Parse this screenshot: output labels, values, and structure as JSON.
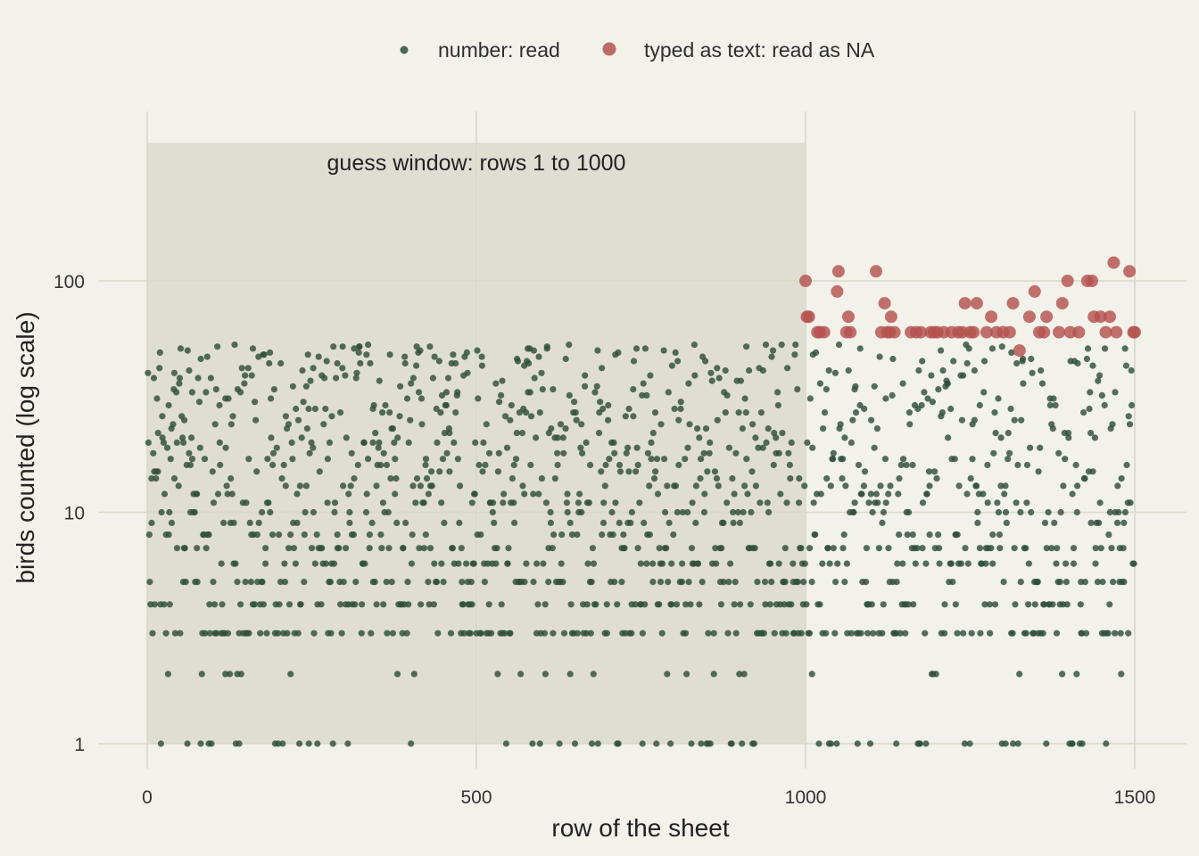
{
  "chart_data": {
    "type": "scatter",
    "xlabel": "row of the sheet",
    "ylabel": "birds counted (log scale)",
    "x_scale": "linear",
    "y_scale": "log10",
    "xlim": [
      -60,
      1560
    ],
    "ylim": [
      0.84,
      500
    ],
    "x_ticks": [
      0,
      500,
      1000,
      1500
    ],
    "x_tick_labels": [
      "0",
      "500",
      "1000",
      "1500"
    ],
    "y_ticks": [
      1,
      10,
      100
    ],
    "y_tick_labels": [
      "1",
      "10",
      "100"
    ],
    "grid": true,
    "legend_position": "top",
    "annotation": {
      "text": "guess window: rows 1 to 1000",
      "x_start": 1,
      "x_end": 1000
    },
    "series": [
      {
        "name": "number: read",
        "color": "#2f4f3a",
        "marker": "small-circle",
        "points_description": "about 1500 rows, counts between 1 and 53 birds",
        "x_range": [
          1,
          1500
        ],
        "y_range": [
          1,
          53
        ],
        "count_values": [
          1,
          2,
          3,
          4,
          5,
          6,
          7,
          8,
          9,
          10,
          11,
          12,
          13,
          14,
          15,
          16,
          17,
          18,
          19,
          20,
          21,
          22,
          23,
          24,
          25,
          26,
          27,
          28,
          29,
          30,
          32,
          34,
          36,
          38,
          40,
          42,
          44,
          46,
          48,
          50,
          52,
          53
        ]
      },
      {
        "name": "typed as text: read as NA",
        "color": "#b5524f",
        "marker": "large-circle",
        "points": [
          [
            1000,
            100
          ],
          [
            1002,
            70
          ],
          [
            1005,
            70
          ],
          [
            1018,
            60
          ],
          [
            1022,
            60
          ],
          [
            1028,
            60
          ],
          [
            1050,
            110
          ],
          [
            1048,
            90
          ],
          [
            1062,
            60
          ],
          [
            1065,
            70
          ],
          [
            1068,
            60
          ],
          [
            1107,
            110
          ],
          [
            1115,
            60
          ],
          [
            1120,
            80
          ],
          [
            1124,
            60
          ],
          [
            1128,
            60
          ],
          [
            1130,
            70
          ],
          [
            1135,
            60
          ],
          [
            1160,
            60
          ],
          [
            1168,
            60
          ],
          [
            1175,
            60
          ],
          [
            1190,
            60
          ],
          [
            1195,
            60
          ],
          [
            1200,
            60
          ],
          [
            1210,
            60
          ],
          [
            1222,
            60
          ],
          [
            1232,
            60
          ],
          [
            1238,
            60
          ],
          [
            1242,
            80
          ],
          [
            1250,
            60
          ],
          [
            1255,
            60
          ],
          [
            1260,
            80
          ],
          [
            1275,
            60
          ],
          [
            1282,
            70
          ],
          [
            1290,
            60
          ],
          [
            1300,
            60
          ],
          [
            1310,
            60
          ],
          [
            1315,
            80
          ],
          [
            1325,
            50
          ],
          [
            1340,
            70
          ],
          [
            1348,
            90
          ],
          [
            1355,
            60
          ],
          [
            1362,
            60
          ],
          [
            1366,
            70
          ],
          [
            1385,
            60
          ],
          [
            1390,
            80
          ],
          [
            1398,
            100
          ],
          [
            1402,
            60
          ],
          [
            1415,
            60
          ],
          [
            1428,
            100
          ],
          [
            1435,
            100
          ],
          [
            1438,
            70
          ],
          [
            1448,
            70
          ],
          [
            1456,
            60
          ],
          [
            1462,
            70
          ],
          [
            1468,
            120
          ],
          [
            1472,
            60
          ],
          [
            1492,
            110
          ],
          [
            1498,
            60
          ],
          [
            1500,
            60
          ]
        ]
      }
    ]
  }
}
